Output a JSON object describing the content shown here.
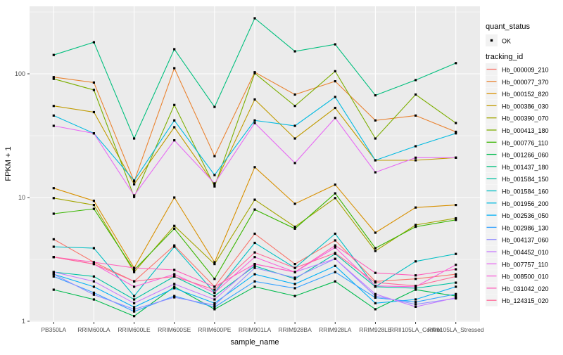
{
  "panel": {
    "bg_color": "#EBEBEB",
    "grid_color": "#FFFFFF",
    "tick_label_color": "#4D4D4D",
    "point_color": "#000000"
  },
  "legend": {
    "quant_status_title": "quant_status",
    "quant_status_items": [
      "OK"
    ],
    "tracking_id_title": "tracking_id",
    "key_bg": "#F2F2F2"
  },
  "chart_data": {
    "type": "line",
    "title": "",
    "xlabel": "sample_name",
    "ylabel": "FPKM + 1",
    "y_scale": "log10",
    "y_ticks": [
      1,
      10,
      100
    ],
    "y_minor_ticks": [
      3.162,
      31.62,
      316.2
    ],
    "ylim": [
      1,
      360
    ],
    "grid": "on",
    "legend_position": "right",
    "point_shape": "black-square",
    "quant_status_all": "OK",
    "x_categories": [
      "PB350LA",
      "RRIM600LA",
      "RRIM600LE",
      "RRIM600SE",
      "RRIM600PE",
      "RRIM901LA",
      "RRIM928BA",
      "RRIM928LA",
      "RRIM928LE",
      "RRII105LA_Control",
      "RRII105LA_Stressed"
    ],
    "series": [
      {
        "tracking_id": "Hb_000009_210",
        "color": "#F8766D",
        "values": [
          4.6,
          3.0,
          2.1,
          4.1,
          1.9,
          5.1,
          2.9,
          4.5,
          2.1,
          2.2,
          2.4
        ]
      },
      {
        "tracking_id": "Hb_000077_370",
        "color": "#EA8331",
        "values": [
          94,
          85,
          13.5,
          111,
          21.6,
          103,
          68,
          87,
          42,
          46,
          34
        ]
      },
      {
        "tracking_id": "Hb_000152_820",
        "color": "#D89000",
        "values": [
          11.9,
          9.4,
          2.7,
          10.0,
          3.0,
          17.6,
          8.9,
          12.7,
          5.2,
          8.3,
          8.7
        ]
      },
      {
        "tracking_id": "Hb_000386_030",
        "color": "#C09B00",
        "values": [
          55,
          49,
          12.8,
          37,
          12.7,
          62,
          30,
          53,
          20,
          20,
          21
        ]
      },
      {
        "tracking_id": "Hb_000390_070",
        "color": "#A3A500",
        "values": [
          9.9,
          8.7,
          2.5,
          5.9,
          2.9,
          9.6,
          5.8,
          9.9,
          3.7,
          6.0,
          6.8
        ]
      },
      {
        "tracking_id": "Hb_000413_180",
        "color": "#7CAE00",
        "values": [
          91,
          74,
          10.1,
          56,
          12.3,
          101,
          55,
          105,
          30,
          68,
          40
        ]
      },
      {
        "tracking_id": "Hb_000776_110",
        "color": "#39B600",
        "values": [
          7.4,
          8.1,
          2.6,
          5.6,
          2.2,
          8.0,
          5.6,
          10.8,
          3.9,
          5.8,
          6.6
        ]
      },
      {
        "tracking_id": "Hb_001266_060",
        "color": "#00BB4E",
        "values": [
          1.8,
          1.5,
          1.1,
          1.9,
          1.25,
          1.9,
          1.6,
          2.1,
          1.25,
          1.8,
          1.6
        ]
      },
      {
        "tracking_id": "Hb_001437_180",
        "color": "#00BF7D",
        "values": [
          142,
          180,
          30,
          158,
          54,
          281,
          152,
          173,
          67,
          89,
          122
        ]
      },
      {
        "tracking_id": "Hb_001584_150",
        "color": "#00C1A3",
        "values": [
          2.5,
          2.3,
          1.5,
          2.3,
          1.6,
          2.8,
          2.2,
          3.5,
          1.9,
          1.85,
          2.05
        ]
      },
      {
        "tracking_id": "Hb_001584_160",
        "color": "#00BFC4",
        "values": [
          4.0,
          3.9,
          1.6,
          4.0,
          1.7,
          4.3,
          2.7,
          5.1,
          1.9,
          3.05,
          3.5
        ]
      },
      {
        "tracking_id": "Hb_001956_200",
        "color": "#00BAE0",
        "values": [
          46,
          33,
          13.7,
          42,
          15.2,
          42,
          38,
          65,
          20,
          26,
          33
        ]
      },
      {
        "tracking_id": "Hb_002536_050",
        "color": "#00B0F6",
        "values": [
          2.4,
          1.9,
          1.3,
          1.85,
          1.4,
          2.4,
          2.0,
          2.8,
          1.4,
          1.5,
          1.9
        ]
      },
      {
        "tracking_id": "Hb_002986_130",
        "color": "#35A2FF",
        "values": [
          2.3,
          1.7,
          1.2,
          1.6,
          1.3,
          2.1,
          1.85,
          2.5,
          1.55,
          1.43,
          1.66
        ]
      },
      {
        "tracking_id": "Hb_004137_060",
        "color": "#9590FF",
        "values": [
          2.4,
          1.64,
          1.25,
          1.56,
          1.35,
          2.7,
          2.25,
          3.2,
          1.6,
          1.37,
          1.53
        ]
      },
      {
        "tracking_id": "Hb_004452_010",
        "color": "#C77CFF",
        "values": [
          2.5,
          2.1,
          1.4,
          2.0,
          1.5,
          2.9,
          2.5,
          3.2,
          1.66,
          1.31,
          1.55
        ]
      },
      {
        "tracking_id": "Hb_007757_110",
        "color": "#E76BF3",
        "values": [
          38,
          33,
          10.4,
          29,
          13,
          40,
          19,
          44,
          16,
          21,
          21
        ]
      },
      {
        "tracking_id": "Hb_008500_010",
        "color": "#FA62DB",
        "values": [
          3.3,
          2.9,
          1.9,
          2.4,
          1.7,
          3.3,
          2.5,
          3.95,
          1.93,
          1.9,
          2.86
        ]
      },
      {
        "tracking_id": "Hb_031042_020",
        "color": "#FF62BC",
        "values": [
          3.3,
          3.0,
          2.7,
          2.6,
          1.9,
          2.9,
          2.5,
          4.1,
          2.46,
          2.35,
          2.63
        ]
      },
      {
        "tracking_id": "Hb_124315_020",
        "color": "#FF6A98",
        "values": [
          3.3,
          2.9,
          2.1,
          2.3,
          1.8,
          3.6,
          2.7,
          3.56,
          2.06,
          1.93,
          2.3
        ]
      }
    ]
  }
}
